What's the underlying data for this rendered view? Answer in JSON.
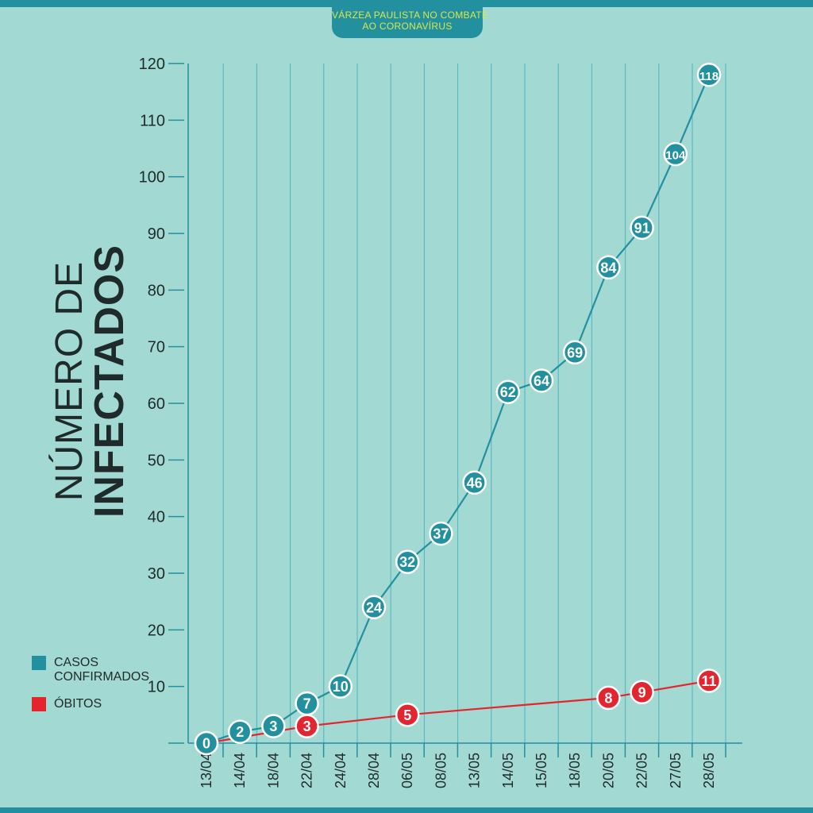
{
  "header": {
    "title_line1": "VÁRZEA PAULISTA NO COMBATE",
    "title_line2": "AO CORONAVÍRUS"
  },
  "y_label": {
    "line1": "NÚMERO DE",
    "line2": "INFECTADOS"
  },
  "legend": [
    {
      "label_line1": "CASOS",
      "label_line2": "CONFIRMADOS",
      "color": "#23909f"
    },
    {
      "label_line1": "ÓBITOS",
      "label_line2": "",
      "color": "#e32530"
    }
  ],
  "chart_data": {
    "type": "line",
    "x": [
      "13/04",
      "14/04",
      "18/04",
      "22/04",
      "24/04",
      "28/04",
      "06/05",
      "08/05",
      "13/05",
      "14/05",
      "15/05",
      "18/05",
      "20/05",
      "22/05",
      "27/05",
      "28/05"
    ],
    "ylim": [
      0,
      120
    ],
    "yticks": [
      0,
      10,
      20,
      30,
      40,
      50,
      60,
      70,
      80,
      90,
      100,
      110,
      120
    ],
    "ytick_labels": [
      "",
      "10",
      "20",
      "30",
      "40",
      "50",
      "60",
      "70",
      "80",
      "90",
      "100",
      "110",
      "120"
    ],
    "grid": "vertical",
    "series": [
      {
        "name": "CASOS CONFIRMADOS",
        "color": "#23909f",
        "points": [
          {
            "x": "13/04",
            "y": 0
          },
          {
            "x": "14/04",
            "y": 2
          },
          {
            "x": "18/04",
            "y": 3
          },
          {
            "x": "22/04",
            "y": 7
          },
          {
            "x": "24/04",
            "y": 10
          },
          {
            "x": "28/04",
            "y": 24
          },
          {
            "x": "06/05",
            "y": 32
          },
          {
            "x": "08/05",
            "y": 37
          },
          {
            "x": "13/05",
            "y": 46
          },
          {
            "x": "14/05",
            "y": 62
          },
          {
            "x": "15/05",
            "y": 64
          },
          {
            "x": "18/05",
            "y": 69
          },
          {
            "x": "20/05",
            "y": 84
          },
          {
            "x": "22/05",
            "y": 91
          },
          {
            "x": "27/05",
            "y": 104
          },
          {
            "x": "28/05",
            "y": 118
          }
        ]
      },
      {
        "name": "ÓBITOS",
        "color": "#e32530",
        "points": [
          {
            "x": "13/04",
            "y": 0
          },
          {
            "x": "22/04",
            "y": 3
          },
          {
            "x": "06/05",
            "y": 5
          },
          {
            "x": "20/05",
            "y": 8
          },
          {
            "x": "22/05",
            "y": 9
          },
          {
            "x": "28/05",
            "y": 11
          }
        ]
      }
    ]
  }
}
